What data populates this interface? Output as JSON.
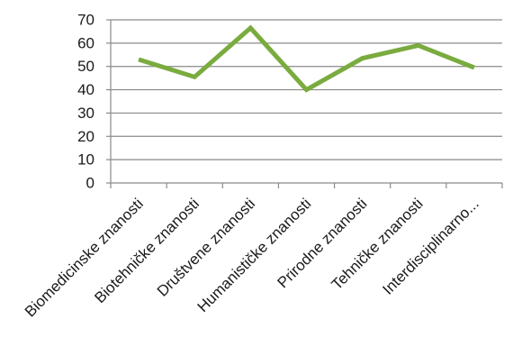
{
  "chart_data": {
    "type": "line",
    "categories": [
      "Biomedicinske znanosti",
      "Biotehničke znanosti",
      "Društvene znanosti",
      "Humanističke znanosti",
      "Prirodne znanosti",
      "Tehničke znanosti",
      "Interdisciplinarno..."
    ],
    "series": [
      {
        "values": [
          53,
          45.5,
          66.5,
          40,
          53.5,
          59,
          49.5
        ],
        "color": "#7aab3f"
      }
    ],
    "ylim": [
      0,
      70
    ],
    "yticks": [
      "0",
      "10",
      "20",
      "30",
      "40",
      "50",
      "60",
      "70"
    ],
    "grid": true,
    "legend": "none"
  }
}
